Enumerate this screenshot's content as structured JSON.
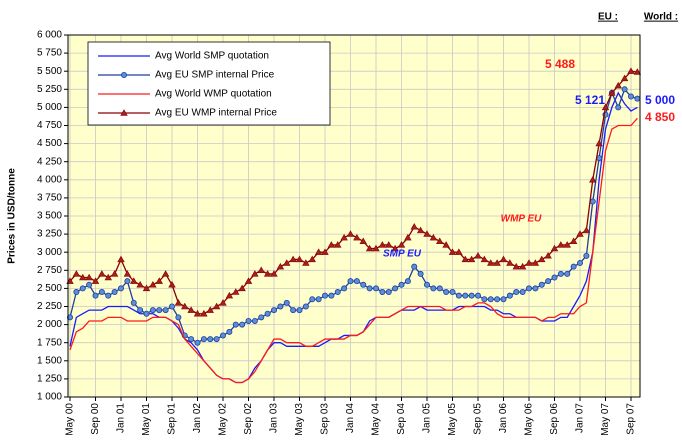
{
  "chart_data": {
    "type": "line",
    "ylabel": "Prices in USD/tonne",
    "categories": [
      "May 00",
      null,
      null,
      null,
      "Sep 00",
      null,
      null,
      null,
      "Jan 01",
      null,
      null,
      null,
      "May 01",
      null,
      null,
      null,
      "Sep 01",
      null,
      null,
      null,
      "Jan 02",
      null,
      null,
      null,
      "May 02",
      null,
      null,
      null,
      "Sep 02",
      null,
      null,
      null,
      "Jan 03",
      null,
      null,
      null,
      "May 03",
      null,
      null,
      null,
      "Sep 03",
      null,
      null,
      null,
      "Jan 04",
      null,
      null,
      null,
      "May 04",
      null,
      null,
      null,
      "Sep 04",
      null,
      null,
      null,
      "Jan 05",
      null,
      null,
      null,
      "May 05",
      null,
      null,
      null,
      "Sep 05",
      null,
      null,
      null,
      "Jan 06",
      null,
      null,
      null,
      "May 06",
      null,
      null,
      null,
      "Sep 06",
      null,
      null,
      null,
      "Jan 07",
      null,
      null,
      null,
      "May 07",
      null,
      null,
      null,
      "Sep 07",
      null
    ],
    "series": [
      {
        "name": "Avg World SMP quotation",
        "color": "#1a1aff",
        "marker": "none",
        "values": [
          1700,
          2100,
          2150,
          2200,
          2200,
          2200,
          2250,
          2250,
          2250,
          2250,
          2200,
          2150,
          2150,
          2150,
          2100,
          2100,
          2050,
          1950,
          1800,
          1750,
          1650,
          1500,
          1400,
          1300,
          1250,
          1250,
          1200,
          1200,
          1250,
          1400,
          1500,
          1650,
          1750,
          1750,
          1700,
          1700,
          1700,
          1700,
          1700,
          1700,
          1750,
          1800,
          1800,
          1850,
          1850,
          1850,
          1900,
          2050,
          2100,
          2100,
          2100,
          2150,
          2200,
          2200,
          2200,
          2250,
          2200,
          2200,
          2200,
          2200,
          2200,
          2250,
          2250,
          2250,
          2250,
          2250,
          2200,
          2200,
          2150,
          2150,
          2100,
          2100,
          2100,
          2100,
          2050,
          2050,
          2050,
          2100,
          2100,
          2250,
          2400,
          2600,
          3000,
          4000,
          4700,
          5000,
          5200,
          5050,
          4950,
          5000
        ]
      },
      {
        "name": "Avg EU SMP internal Price",
        "color": "#1f3f9f",
        "marker": "circle",
        "values": [
          2100,
          2450,
          2500,
          2550,
          2400,
          2450,
          2400,
          2450,
          2500,
          2600,
          2300,
          2200,
          2150,
          2200,
          2200,
          2200,
          2250,
          2100,
          1850,
          1800,
          1750,
          1800,
          1800,
          1800,
          1850,
          1900,
          2000,
          2000,
          2050,
          2050,
          2100,
          2150,
          2200,
          2250,
          2300,
          2200,
          2200,
          2250,
          2350,
          2350,
          2400,
          2400,
          2450,
          2500,
          2600,
          2600,
          2550,
          2500,
          2500,
          2450,
          2450,
          2500,
          2550,
          2600,
          2800,
          2700,
          2550,
          2500,
          2500,
          2450,
          2450,
          2400,
          2400,
          2400,
          2400,
          2350,
          2350,
          2350,
          2350,
          2400,
          2450,
          2450,
          2500,
          2500,
          2550,
          2600,
          2650,
          2700,
          2700,
          2800,
          2850,
          2950,
          3700,
          4300,
          4900,
          5200,
          5000,
          5250,
          5150,
          5121
        ]
      },
      {
        "name": "Avg World WMP quotation",
        "color": "#ff1a1a",
        "marker": "none",
        "values": [
          1650,
          1900,
          1950,
          2050,
          2050,
          2050,
          2100,
          2100,
          2100,
          2050,
          2050,
          2050,
          2050,
          2100,
          2100,
          2100,
          2050,
          2000,
          1800,
          1700,
          1600,
          1500,
          1400,
          1300,
          1250,
          1250,
          1200,
          1200,
          1250,
          1350,
          1500,
          1650,
          1800,
          1800,
          1750,
          1750,
          1750,
          1700,
          1700,
          1750,
          1800,
          1800,
          1800,
          1800,
          1850,
          1850,
          1900,
          2000,
          2100,
          2100,
          2100,
          2150,
          2200,
          2250,
          2250,
          2250,
          2250,
          2250,
          2250,
          2200,
          2200,
          2200,
          2250,
          2250,
          2300,
          2300,
          2250,
          2150,
          2100,
          2100,
          2100,
          2100,
          2100,
          2100,
          2050,
          2100,
          2100,
          2150,
          2150,
          2150,
          2250,
          2300,
          3000,
          3700,
          4400,
          4700,
          4750,
          4750,
          4750,
          4850
        ]
      },
      {
        "name": "Avg EU WMP internal Price",
        "color": "#8b0000",
        "marker": "triangle",
        "values": [
          2600,
          2700,
          2650,
          2650,
          2600,
          2700,
          2650,
          2700,
          2900,
          2700,
          2600,
          2550,
          2500,
          2550,
          2600,
          2700,
          2550,
          2300,
          2250,
          2200,
          2150,
          2150,
          2200,
          2250,
          2300,
          2400,
          2450,
          2500,
          2600,
          2700,
          2750,
          2700,
          2700,
          2800,
          2850,
          2900,
          2900,
          2850,
          2900,
          3000,
          3000,
          3100,
          3100,
          3200,
          3250,
          3200,
          3150,
          3050,
          3050,
          3100,
          3100,
          3050,
          3100,
          3200,
          3350,
          3300,
          3250,
          3200,
          3150,
          3100,
          3000,
          3000,
          2900,
          2900,
          2950,
          2900,
          2850,
          2850,
          2900,
          2850,
          2800,
          2800,
          2850,
          2850,
          2900,
          2950,
          3050,
          3100,
          3100,
          3150,
          3250,
          3300,
          4000,
          4500,
          5000,
          5200,
          5300,
          5400,
          5500,
          5488
        ]
      }
    ],
    "ylim": [
      1000,
      6000
    ],
    "yticks": [
      {
        "value": 1000,
        "label": "1 000"
      },
      {
        "value": 1250,
        "label": "1 250"
      },
      {
        "value": 1500,
        "label": "1 500"
      },
      {
        "value": 1750,
        "label": "1 750"
      },
      {
        "value": 2000,
        "label": "2 000"
      },
      {
        "value": 2250,
        "label": "2 250"
      },
      {
        "value": 2500,
        "label": "2 500"
      },
      {
        "value": 2750,
        "label": "2 750"
      },
      {
        "value": 3000,
        "label": "3 000"
      },
      {
        "value": 3250,
        "label": "3 250"
      },
      {
        "value": 3500,
        "label": "3 500"
      },
      {
        "value": 3750,
        "label": "3 750"
      },
      {
        "value": 4000,
        "label": "4 000"
      },
      {
        "value": 4250,
        "label": "4 250"
      },
      {
        "value": 4500,
        "label": "4 500"
      },
      {
        "value": 4750,
        "label": "4 750"
      },
      {
        "value": 5000,
        "label": "5 000"
      },
      {
        "value": 5250,
        "label": "5 250"
      },
      {
        "value": 5500,
        "label": "5 500"
      },
      {
        "value": 5750,
        "label": "5 750"
      },
      {
        "value": 6000,
        "label": "6 000"
      }
    ],
    "grid": true,
    "legend": "upper left",
    "column_headers": [
      "EU :",
      "World :"
    ],
    "annotations": [
      "5 488",
      "5 121",
      "5 000",
      "4 850",
      "WMP EU",
      "SMP EU"
    ]
  }
}
